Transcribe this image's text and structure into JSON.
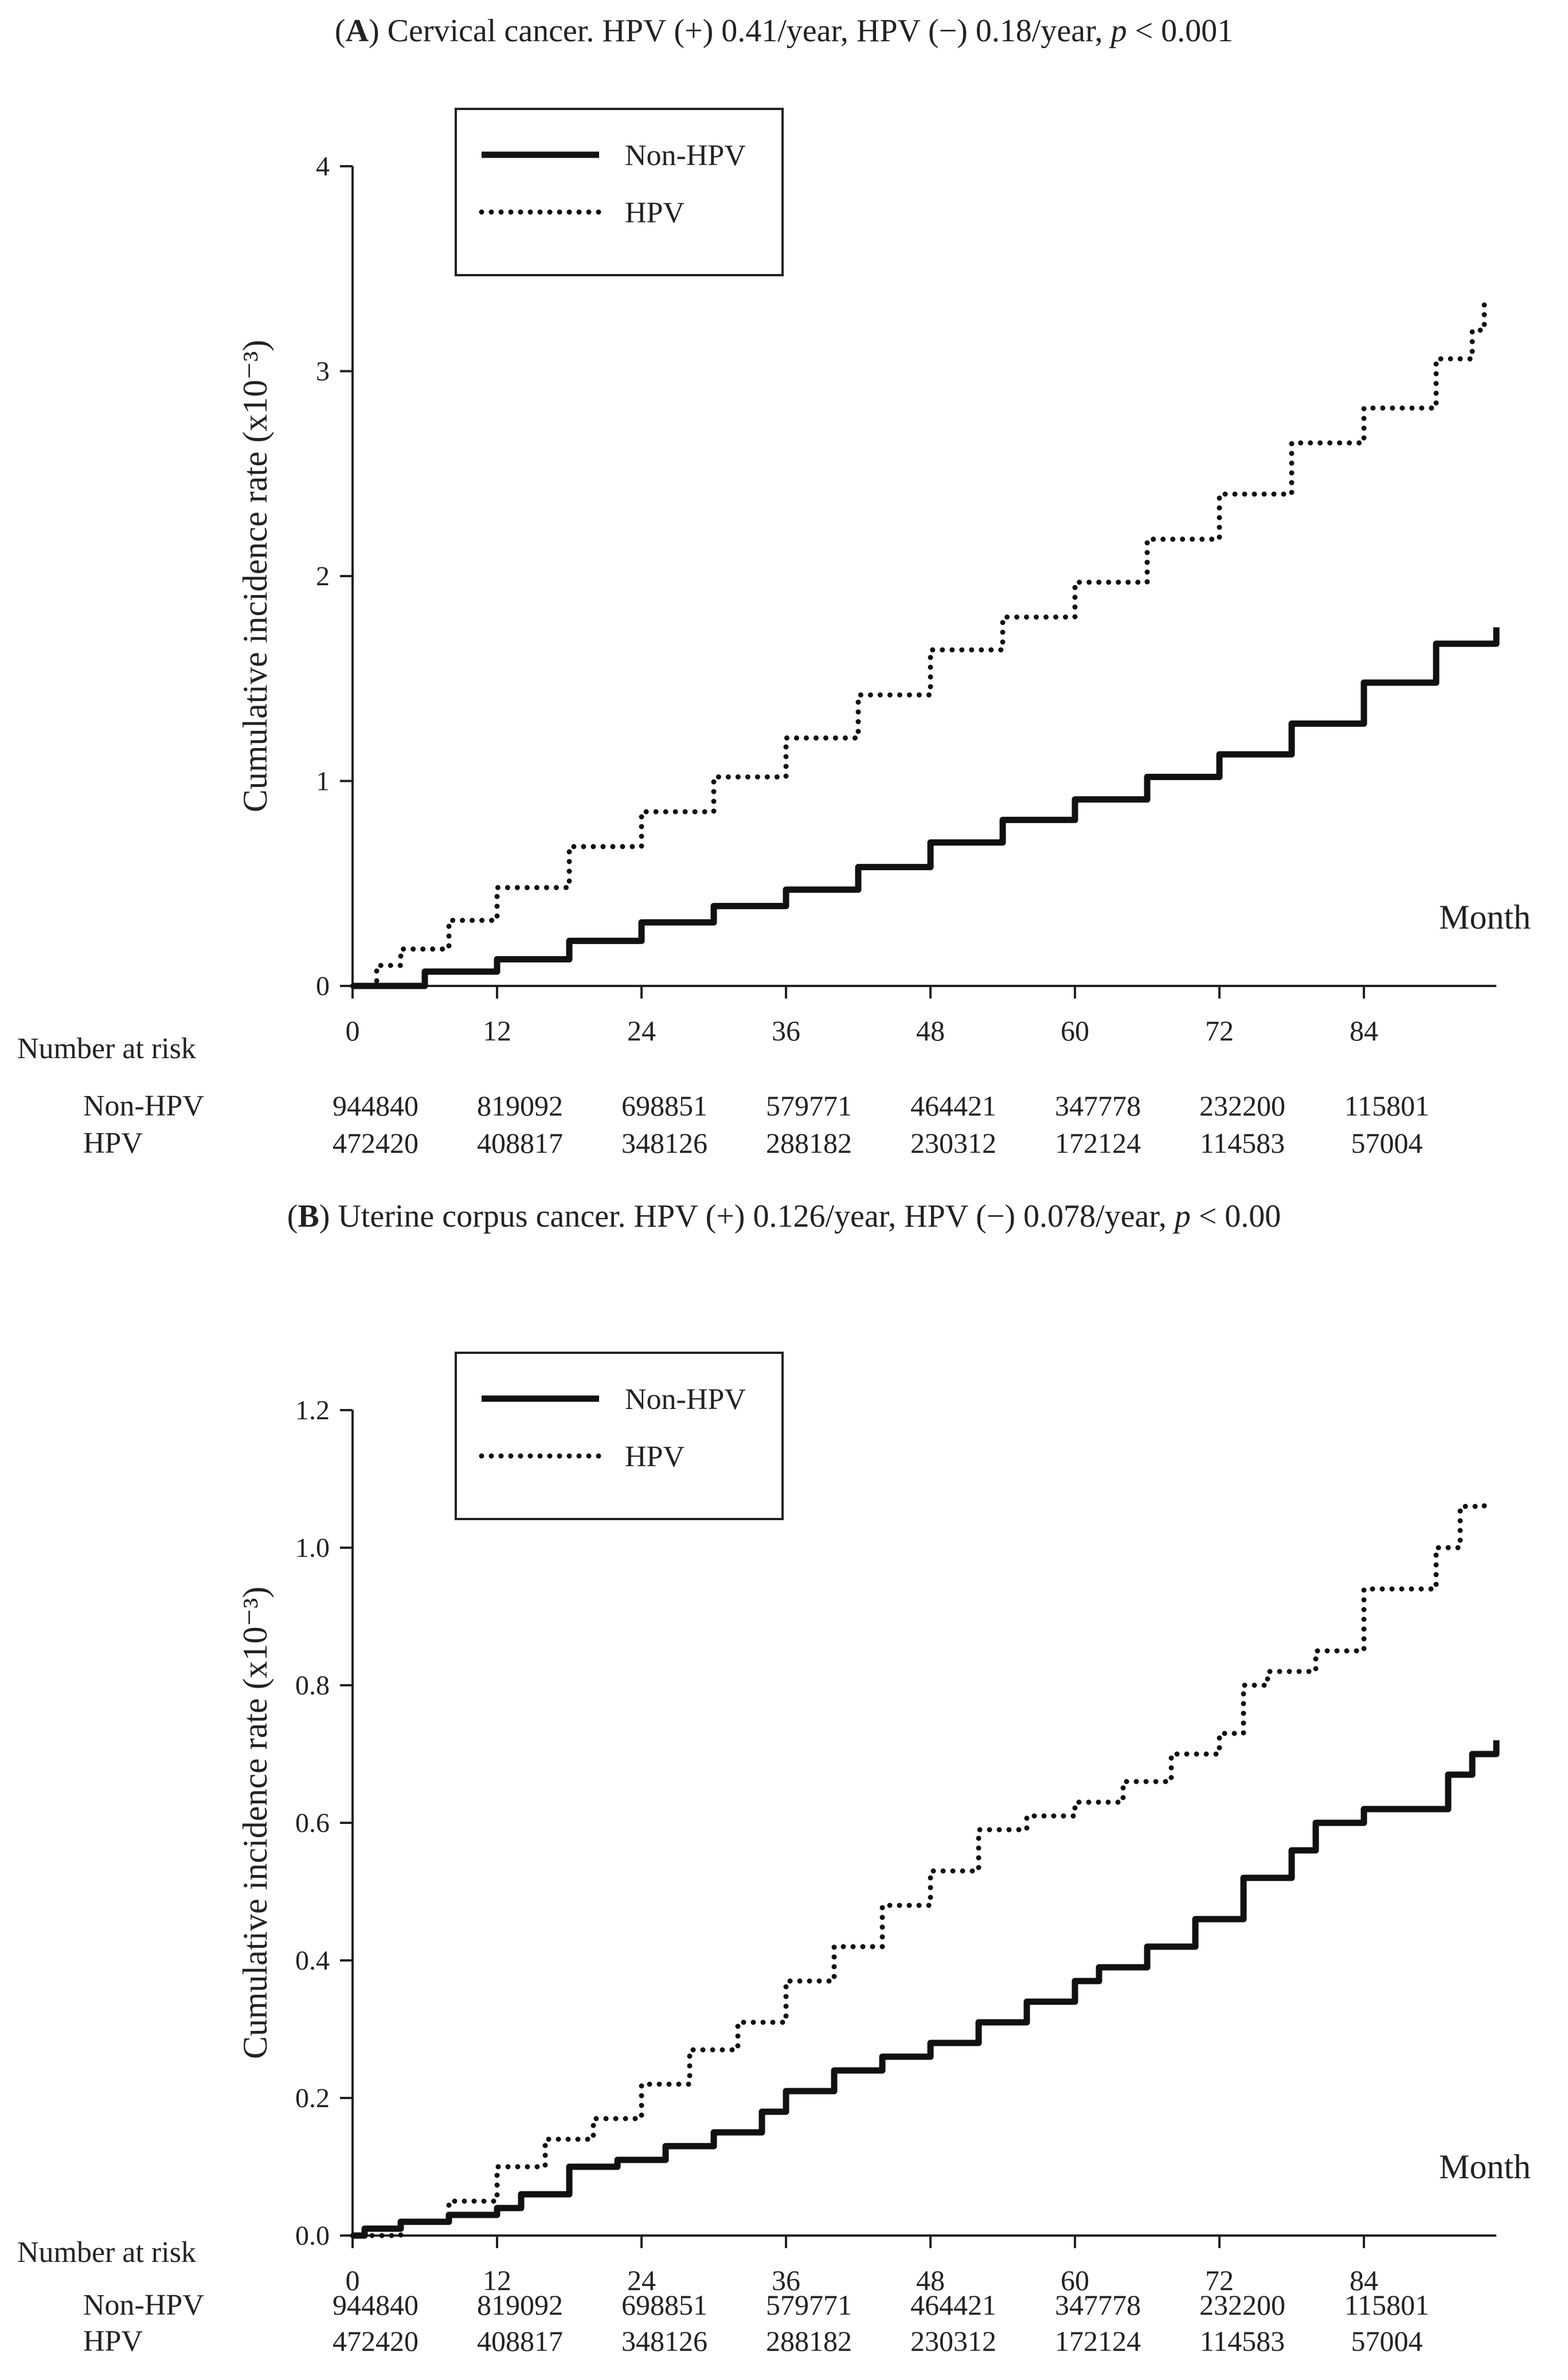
{
  "chart_data": [
    {
      "type": "line",
      "panel_letter": "A",
      "title_text": "Cervical cancer. HPV (+) 0.41/year, HPV (−) 0.18/year,",
      "title_p": "p",
      "title_p_tail": "< 0.001",
      "ylabel": "Cumulative incidence rate (x10⁻³)",
      "xlabel": "Month",
      "ylim": [
        0,
        4
      ],
      "xlim": [
        0,
        95
      ],
      "yticks": [
        "0",
        "1",
        "2",
        "3",
        "4"
      ],
      "xticks": [
        "0",
        "12",
        "24",
        "36",
        "48",
        "60",
        "72",
        "84"
      ],
      "legend": [
        "Non-HPV",
        "HPV"
      ],
      "series": [
        {
          "name": "Non-HPV",
          "style": "solid",
          "x": [
            0,
            6,
            12,
            18,
            24,
            30,
            36,
            42,
            48,
            54,
            60,
            66,
            72,
            78,
            84,
            90,
            95
          ],
          "y": [
            0,
            0.07,
            0.13,
            0.22,
            0.31,
            0.39,
            0.47,
            0.58,
            0.7,
            0.81,
            0.91,
            1.02,
            1.13,
            1.28,
            1.48,
            1.67,
            1.75
          ]
        },
        {
          "name": "HPV",
          "style": "dotted",
          "x": [
            0,
            2,
            4,
            8,
            12,
            18,
            24,
            30,
            36,
            42,
            48,
            54,
            60,
            66,
            72,
            78,
            84,
            90,
            93,
            94
          ],
          "y": [
            0,
            0.1,
            0.18,
            0.32,
            0.48,
            0.68,
            0.85,
            1.02,
            1.21,
            1.42,
            1.64,
            1.8,
            1.97,
            2.18,
            2.4,
            2.65,
            2.82,
            3.06,
            3.2,
            3.35
          ]
        }
      ],
      "risk_table": {
        "title": "Number at risk",
        "rows": [
          {
            "label": "Non-HPV",
            "values": [
              "944840",
              "819092",
              "698851",
              "579771",
              "464421",
              "347778",
              "232200",
              "115801"
            ]
          },
          {
            "label": "HPV",
            "values": [
              "472420",
              "408817",
              "348126",
              "288182",
              "230312",
              "172124",
              "114583",
              "57004"
            ]
          }
        ]
      }
    },
    {
      "type": "line",
      "panel_letter": "B",
      "title_text": "Uterine corpus cancer. HPV (+) 0.126/year, HPV (−) 0.078/year,",
      "title_p": "p",
      "title_p_tail": "< 0.00",
      "ylabel": "Cumulative incidence rate (x10⁻³)",
      "xlabel": "Month",
      "ylim": [
        0,
        1.2
      ],
      "xlim": [
        0,
        95
      ],
      "yticks": [
        "0.0",
        "0.2",
        "0.4",
        "0.6",
        "0.8",
        "1.0",
        "1.2"
      ],
      "xticks": [
        "0",
        "12",
        "24",
        "36",
        "48",
        "60",
        "72",
        "84"
      ],
      "legend": [
        "Non-HPV",
        "HPV"
      ],
      "series": [
        {
          "name": "Non-HPV",
          "style": "solid",
          "x": [
            0,
            1,
            4,
            8,
            12,
            14,
            18,
            22,
            26,
            30,
            34,
            36,
            40,
            44,
            48,
            52,
            56,
            60,
            62,
            66,
            70,
            74,
            78,
            80,
            84,
            88,
            91,
            93,
            95
          ],
          "y": [
            0,
            0.01,
            0.02,
            0.03,
            0.04,
            0.06,
            0.1,
            0.11,
            0.13,
            0.15,
            0.18,
            0.21,
            0.24,
            0.26,
            0.28,
            0.31,
            0.34,
            0.37,
            0.39,
            0.42,
            0.46,
            0.52,
            0.56,
            0.6,
            0.62,
            0.62,
            0.67,
            0.7,
            0.72
          ]
        },
        {
          "name": "HPV",
          "style": "dotted",
          "x": [
            0,
            4,
            8,
            12,
            16,
            20,
            24,
            28,
            32,
            36,
            40,
            44,
            48,
            52,
            56,
            60,
            64,
            68,
            72,
            74,
            76,
            80,
            84,
            86,
            88,
            90,
            92,
            94
          ],
          "y": [
            0,
            0.02,
            0.05,
            0.1,
            0.14,
            0.17,
            0.22,
            0.27,
            0.31,
            0.37,
            0.42,
            0.48,
            0.53,
            0.59,
            0.61,
            0.63,
            0.66,
            0.7,
            0.73,
            0.8,
            0.82,
            0.85,
            0.94,
            0.94,
            0.94,
            1.0,
            1.06,
            1.07
          ]
        }
      ],
      "risk_table": {
        "title": "Number at risk",
        "rows": [
          {
            "label": "Non-HPV",
            "values": [
              "944840",
              "819092",
              "698851",
              "579771",
              "464421",
              "347778",
              "232200",
              "115801"
            ]
          },
          {
            "label": "HPV",
            "values": [
              "472420",
              "408817",
              "348126",
              "288182",
              "230312",
              "172124",
              "114583",
              "57004"
            ]
          }
        ]
      }
    }
  ]
}
